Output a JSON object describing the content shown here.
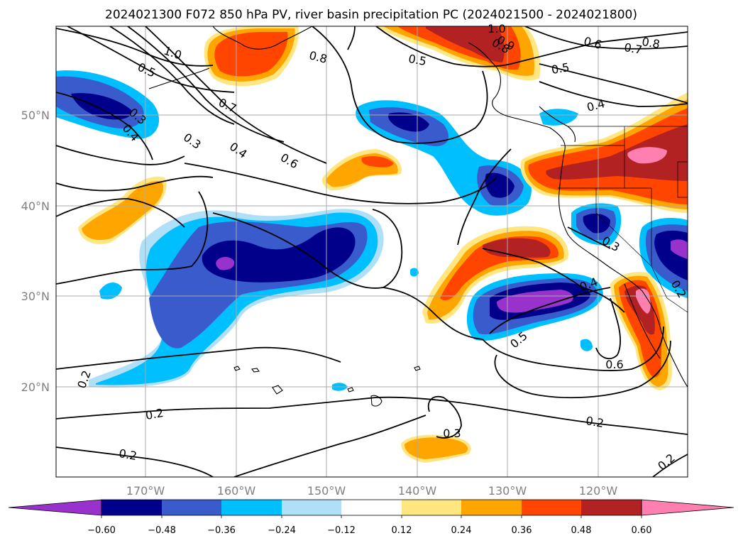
{
  "title": "2024021300 F072 850 hPa PV, river basin precipitation PC (2024021500 - 2024021800)",
  "map": {
    "lon_ticks": [
      "170°W",
      "160°W",
      "150°W",
      "140°W",
      "130°W",
      "120°W"
    ],
    "lat_ticks": [
      "50°N",
      "40°N",
      "30°N",
      "20°N"
    ],
    "contour_labels": [
      "1.0",
      "0.5",
      "0.8",
      "0.5",
      "0.8",
      "0.6",
      "0.7",
      "0.8",
      "0.5",
      "0.7",
      "0.3",
      "0.4",
      "0.3",
      "0.4",
      "0.6",
      "0.4",
      "0.3",
      "0.4",
      "0.5",
      "0.6",
      "0.2",
      "0.2",
      "0.2",
      "0.3",
      "0.2",
      "0.2",
      "0.2",
      "0.9",
      "1.0"
    ]
  },
  "colorbar": {
    "tick_labels": [
      "−0.60",
      "−0.48",
      "−0.36",
      "−0.24",
      "−0.12",
      "0.12",
      "0.24",
      "0.36",
      "0.48",
      "0.60"
    ],
    "colors": [
      "#9932cc",
      "#00008b",
      "#3a5bcc",
      "#00bfff",
      "#b0e0f8",
      "#ffffff",
      "#ffe680",
      "#ffa500",
      "#ff4500",
      "#b22222",
      "#ff7fb0"
    ]
  }
}
